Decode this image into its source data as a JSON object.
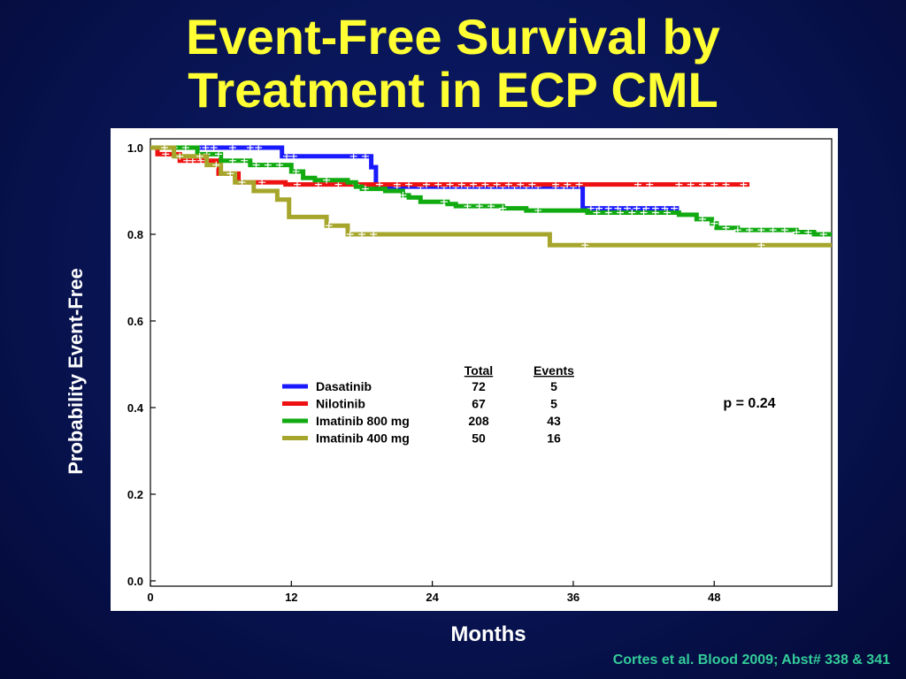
{
  "slide": {
    "title_line1": "Event-Free Survival by",
    "title_line2": "Treatment in ECP CML",
    "citation": "Cortes et al.  Blood 2009; Abst# 338 & 341"
  },
  "chart_data": {
    "type": "line",
    "subtype": "kaplan-meier step curve",
    "xlabel": "Months",
    "ylabel": "Probability Event-Free",
    "xlim": [
      0,
      58
    ],
    "ylim": [
      0,
      1.0
    ],
    "x_ticks": [
      "0",
      "12",
      "24",
      "36",
      "48"
    ],
    "y_ticks": [
      "0.0",
      "0.2",
      "0.4",
      "0.6",
      "0.8",
      "1.0"
    ],
    "x_tick_values": [
      0,
      12,
      24,
      36,
      48
    ],
    "y_tick_values": [
      0,
      0.2,
      0.4,
      0.6,
      0.8,
      1.0
    ],
    "grid": false,
    "annotation": "p = 0.24",
    "legend": {
      "placement": "center",
      "col_total": "Total",
      "col_events": "Events"
    },
    "series": [
      {
        "name": "Dasatinib",
        "color": "#1a1aff",
        "total": "72",
        "events": "5",
        "steps": [
          [
            0,
            1.0
          ],
          [
            11.2,
            0.98
          ],
          [
            18.8,
            0.955
          ],
          [
            19.2,
            0.91
          ],
          [
            36.8,
            0.86
          ],
          [
            45,
            0.86
          ]
        ],
        "censors": [
          0.5,
          1.5,
          2.5,
          3.3,
          4,
          4.7,
          5.4,
          7,
          8.5,
          9.2,
          11.6,
          12.2,
          17.3,
          18.3,
          21,
          23,
          25,
          26,
          27,
          28,
          29,
          30,
          31,
          32,
          33,
          34.5,
          35.2,
          36,
          37.5,
          38.2,
          39,
          39.8,
          40.6,
          41.4,
          42.2,
          43,
          43.8,
          44.6
        ]
      },
      {
        "name": "Nilotinib",
        "color": "#ee1111",
        "total": "67",
        "events": "5",
        "steps": [
          [
            0,
            1.0
          ],
          [
            0.6,
            0.985
          ],
          [
            2.5,
            0.97
          ],
          [
            5.8,
            0.94
          ],
          [
            7.5,
            0.92
          ],
          [
            11.5,
            0.915
          ],
          [
            51,
            0.915
          ]
        ],
        "censors": [
          0.3,
          1.3,
          3.1,
          3.6,
          4.3,
          6.2,
          8.2,
          9.5,
          12.5,
          14.3,
          16,
          17.5,
          19.5,
          21,
          22,
          23.5,
          24.5,
          25.5,
          26.5,
          27.5,
          28.5,
          29.5,
          30.5,
          31.5,
          32.5,
          34.5,
          35.5,
          36.5,
          41.5,
          42.5,
          45,
          46,
          47,
          48,
          49,
          50.5
        ]
      },
      {
        "name": "Imatinib 800 mg",
        "color": "#11aa11",
        "total": "208",
        "events": "43",
        "steps": [
          [
            0,
            1.0
          ],
          [
            4,
            0.985
          ],
          [
            6,
            0.97
          ],
          [
            8.5,
            0.96
          ],
          [
            12,
            0.945
          ],
          [
            13,
            0.93
          ],
          [
            14,
            0.925
          ],
          [
            16.8,
            0.92
          ],
          [
            17.5,
            0.91
          ],
          [
            18,
            0.905
          ],
          [
            20,
            0.9
          ],
          [
            21.5,
            0.89
          ],
          [
            22,
            0.885
          ],
          [
            23,
            0.875
          ],
          [
            25.3,
            0.87
          ],
          [
            26,
            0.865
          ],
          [
            30,
            0.86
          ],
          [
            32,
            0.855
          ],
          [
            37.2,
            0.85
          ],
          [
            45,
            0.845
          ],
          [
            46.5,
            0.835
          ],
          [
            47.8,
            0.825
          ],
          [
            48.2,
            0.815
          ],
          [
            50,
            0.81
          ],
          [
            55,
            0.805
          ],
          [
            56.5,
            0.8
          ],
          [
            58,
            0.8
          ]
        ],
        "censors": [
          1,
          2,
          3,
          4.8,
          5.8,
          7,
          8,
          9,
          10,
          11,
          12.4,
          15,
          18.3,
          21.5,
          25,
          27,
          28,
          29,
          30,
          33,
          38,
          39,
          40,
          41,
          42,
          43,
          44,
          47,
          48,
          49,
          50,
          51,
          52,
          53,
          54,
          55,
          56,
          57.3
        ]
      },
      {
        "name": "Imatinib 400 mg",
        "color": "#a6a62c",
        "total": "50",
        "events": "16",
        "steps": [
          [
            0,
            1.0
          ],
          [
            2,
            0.98
          ],
          [
            4.8,
            0.96
          ],
          [
            6,
            0.94
          ],
          [
            7.2,
            0.92
          ],
          [
            8.8,
            0.9
          ],
          [
            10.8,
            0.88
          ],
          [
            11.8,
            0.84
          ],
          [
            15,
            0.82
          ],
          [
            16.8,
            0.8
          ],
          [
            34,
            0.775
          ],
          [
            58,
            0.775
          ]
        ],
        "censors": [
          1.2,
          2.5,
          4.2,
          5.6,
          6.8,
          7.8,
          15.2,
          17,
          18,
          19,
          37,
          52
        ]
      }
    ]
  }
}
